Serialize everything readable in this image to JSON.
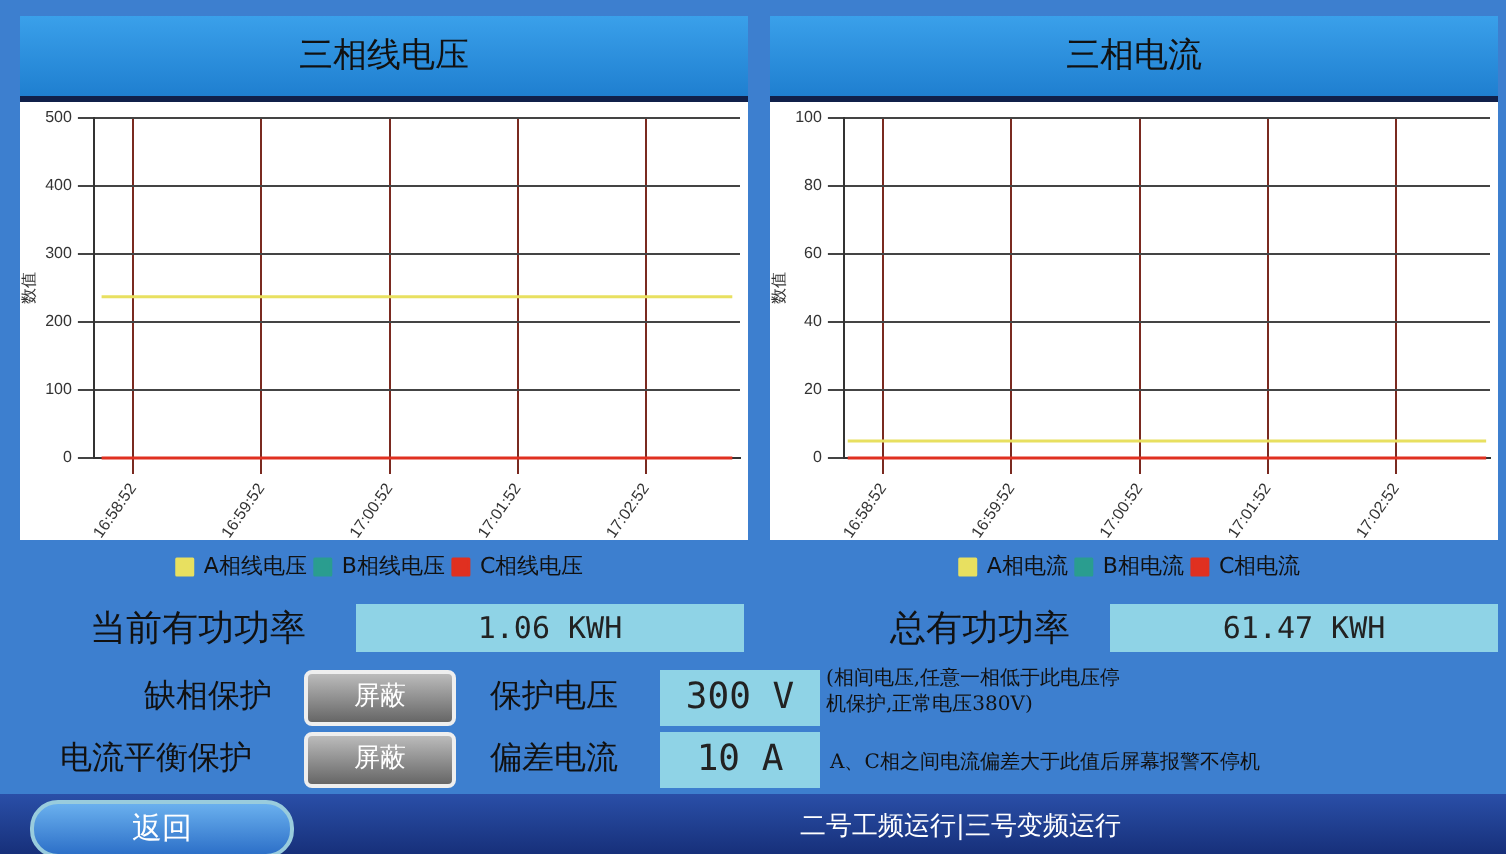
{
  "chart_data": [
    {
      "type": "line",
      "title": "三相线电压",
      "ylabel": "数值",
      "x": [
        16.977,
        17.059
      ],
      "xlim": [
        16.976,
        17.06
      ],
      "xticks": [
        {
          "value": 16.98111,
          "label": "16:58:52"
        },
        {
          "value": 16.99778,
          "label": "16:59:52"
        },
        {
          "value": 17.01444,
          "label": "17:00:52"
        },
        {
          "value": 17.03111,
          "label": "17:01:52"
        },
        {
          "value": 17.04778,
          "label": "17:02:52"
        }
      ],
      "ylim": [
        0,
        500
      ],
      "yticks": [
        0,
        100,
        200,
        300,
        400,
        500
      ],
      "grid": true,
      "legend": "bottom",
      "marker": "none",
      "series": [
        {
          "name": "A相线电压",
          "color": "#e8e060",
          "values": [
            237,
            237
          ]
        },
        {
          "name": "B相线电压",
          "color": "#2a9d8f",
          "values": [
            null,
            null
          ]
        },
        {
          "name": "C相线电压",
          "color": "#e03020",
          "values": [
            0,
            0
          ]
        }
      ]
    },
    {
      "type": "line",
      "title": "三相电流",
      "ylabel": "数值",
      "x": [
        16.9765,
        17.0595
      ],
      "xlim": [
        16.976,
        17.06
      ],
      "xticks": [
        {
          "value": 16.98111,
          "label": "16:58:52"
        },
        {
          "value": 16.99778,
          "label": "16:59:52"
        },
        {
          "value": 17.01444,
          "label": "17:00:52"
        },
        {
          "value": 17.03111,
          "label": "17:01:52"
        },
        {
          "value": 17.04778,
          "label": "17:02:52"
        }
      ],
      "ylim": [
        0,
        100
      ],
      "yticks": [
        0,
        20,
        40,
        60,
        80,
        100
      ],
      "grid": true,
      "legend": "bottom",
      "marker": "none",
      "series": [
        {
          "name": "A相电流",
          "color": "#e8e060",
          "values": [
            5,
            5
          ]
        },
        {
          "name": "B相电流",
          "color": "#2a9d8f",
          "values": [
            null,
            null
          ]
        },
        {
          "name": "C相电流",
          "color": "#e03020",
          "values": [
            0,
            0
          ]
        }
      ]
    },
    {
      "type": "other",
      "annotations": [
        "当前有功功率",
        "1.06 KWH",
        "总有功功率",
        "61.47 KWH",
        "缺相保护",
        "屏蔽",
        "保护电压",
        "300 V",
        "(相间电压,任意一相低于此电压停机保护,正常电压380V)",
        "电流平衡保护",
        "屏蔽",
        "偏差电流",
        "10 A",
        "A、C相之间电流偏差大于此值后屏幕报警不停机",
        "返回",
        "二号工频运行|三号变频运行"
      ]
    }
  ]
}
